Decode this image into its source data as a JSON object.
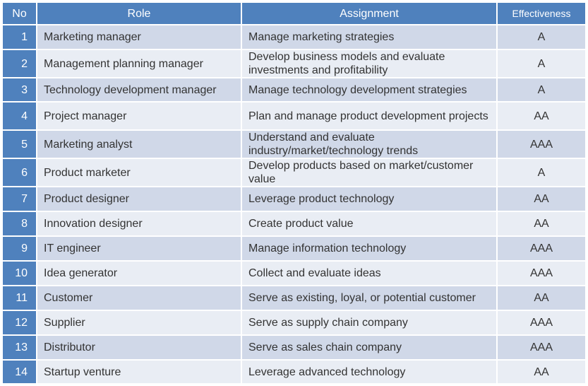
{
  "header": {
    "no": "No",
    "role": "Role",
    "assignment": "Assignment",
    "effectiveness": "Effectiveness"
  },
  "rows": [
    {
      "no": "1",
      "role": "Marketing manager",
      "assignment": "Manage marketing strategies",
      "effectiveness": "A"
    },
    {
      "no": "2",
      "role": "Management planning manager",
      "assignment": "Develop business models and evaluate investments and profitability",
      "effectiveness": "A"
    },
    {
      "no": "3",
      "role": "Technology development manager",
      "assignment": "Manage technology development strategies",
      "effectiveness": "A"
    },
    {
      "no": "4",
      "role": "Project manager",
      "assignment": "Plan and manage product development projects",
      "effectiveness": "AA"
    },
    {
      "no": "5",
      "role": "Marketing analyst",
      "assignment": "Understand and evaluate industry/market/technology trends",
      "effectiveness": "AAA"
    },
    {
      "no": "6",
      "role": "Product marketer",
      "assignment": "Develop products based on  market/customer value",
      "effectiveness": "A"
    },
    {
      "no": "7",
      "role": "Product designer",
      "assignment": "Leverage product technology",
      "effectiveness": "AA"
    },
    {
      "no": "8",
      "role": "Innovation designer",
      "assignment": "Create product value",
      "effectiveness": "AA"
    },
    {
      "no": "9",
      "role": "IT engineer",
      "assignment": "Manage information technology",
      "effectiveness": "AAA"
    },
    {
      "no": "10",
      "role": "Idea generator",
      "assignment": "Collect and evaluate ideas",
      "effectiveness": "AAA"
    },
    {
      "no": "11",
      "role": "Customer",
      "assignment": "Serve as existing, loyal, or potential customer",
      "effectiveness": "AA"
    },
    {
      "no": "12",
      "role": "Supplier",
      "assignment": "Serve as supply chain company",
      "effectiveness": "AAA"
    },
    {
      "no": "13",
      "role": "Distributor",
      "assignment": "Serve as sales chain company",
      "effectiveness": "AAA"
    },
    {
      "no": "14",
      "role": "Startup venture",
      "assignment": "Leverage advanced technology",
      "effectiveness": "AA"
    }
  ]
}
